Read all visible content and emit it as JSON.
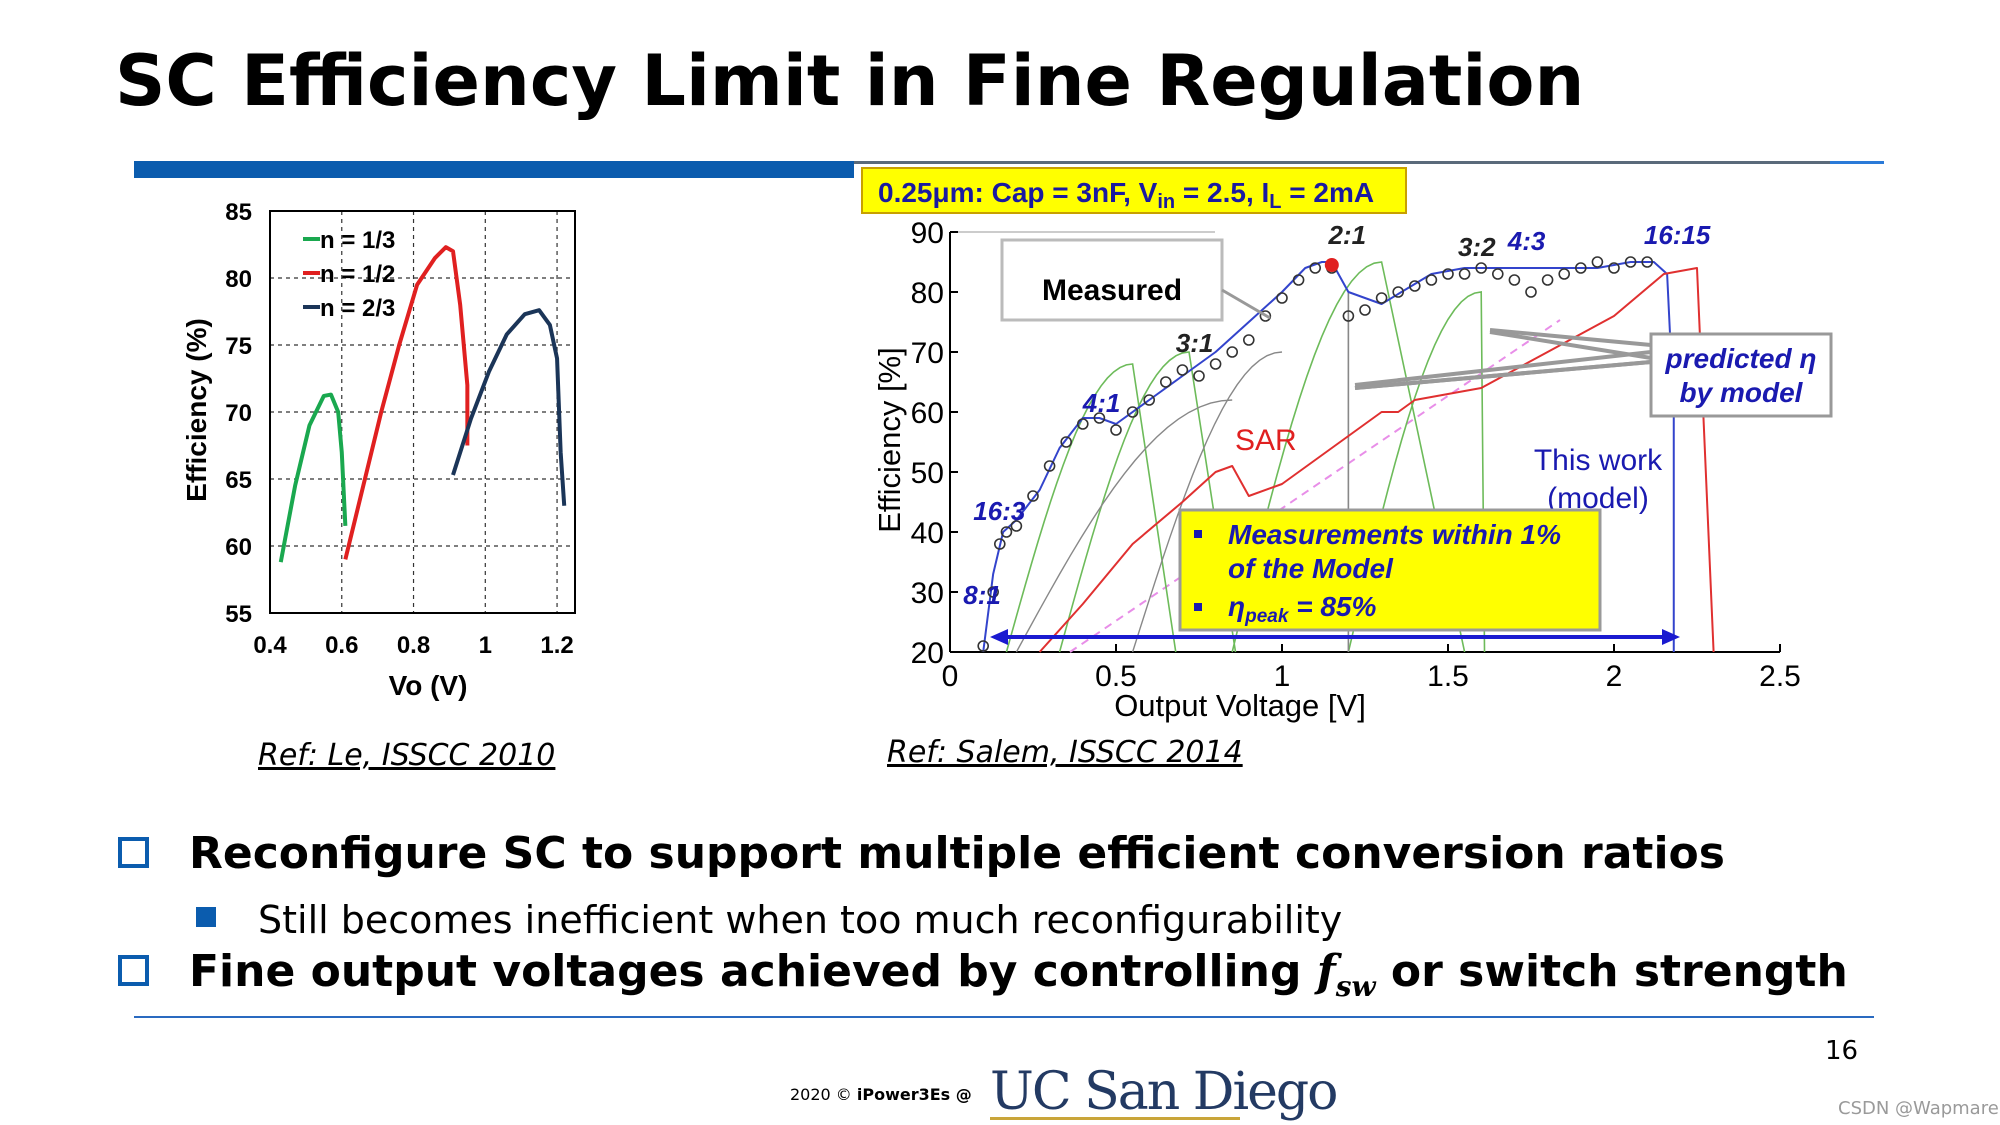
{
  "slide": {
    "title": "SC Efficiency Limit in Fine Regulation",
    "page_number": "16",
    "footer_text": "2020 © ",
    "footer_brand": "iPower3Es @",
    "footer_logo_text": "UC San Diego",
    "watermark": "CSDN @Wapmare",
    "colors": {
      "accent": "#0b5cae",
      "rule": "#2a6ac0",
      "logo": "#233a63"
    }
  },
  "ref_left": "Ref: Le, ISSCC 2010",
  "ref_right": "Ref: Salem, ISSCC 2014",
  "bullets": {
    "b1": "Reconfigure SC to support multiple efficient conversion ratios",
    "b1_sub": "Still becomes inefficient when too much reconfigurability",
    "b2_pre": "Fine output voltages achieved by controlling ",
    "b2_var": "f",
    "b2_var_sub": "sw",
    "b2_post": " or switch strength",
    "icons": [
      "checkbox-icon",
      "square-bullet-icon",
      "checkbox-icon"
    ]
  },
  "chart_data": [
    {
      "type": "line",
      "xlabel": "Vo (V)",
      "ylabel": "Efficiency (%)",
      "xlim": [
        0.4,
        1.25
      ],
      "ylim": [
        55,
        85
      ],
      "xticks": [
        "0.4",
        "0.6",
        "0.8",
        "1",
        "1.2"
      ],
      "yticks": [
        "55",
        "60",
        "65",
        "70",
        "75",
        "80",
        "85"
      ],
      "grid": true,
      "legend_position": "top-left",
      "series": [
        {
          "name": "n = 1/3",
          "color": "#1aa84f",
          "x": [
            0.43,
            0.47,
            0.51,
            0.55,
            0.57,
            0.59,
            0.6,
            0.61
          ],
          "y": [
            58.8,
            64.5,
            69.0,
            71.2,
            71.3,
            70.0,
            67.0,
            61.5
          ]
        },
        {
          "name": "n = 1/2",
          "color": "#e02020",
          "x": [
            0.61,
            0.66,
            0.71,
            0.76,
            0.81,
            0.86,
            0.89,
            0.91,
            0.93,
            0.95,
            0.95
          ],
          "y": [
            59.0,
            64.5,
            70.0,
            75.0,
            79.5,
            81.5,
            82.3,
            82.0,
            78.0,
            72.0,
            67.5
          ]
        },
        {
          "name": "n = 2/3",
          "color": "#1b3558",
          "x": [
            0.91,
            0.96,
            1.01,
            1.06,
            1.11,
            1.15,
            1.18,
            1.2,
            1.21,
            1.22
          ],
          "y": [
            65.3,
            69.5,
            73.0,
            75.8,
            77.3,
            77.6,
            76.5,
            74.0,
            67.0,
            63.0
          ]
        }
      ]
    },
    {
      "type": "line",
      "xlabel": "Output Voltage [V]",
      "ylabel": "Efficiency [%]",
      "xlim": [
        0,
        2.5
      ],
      "ylim": [
        20,
        90
      ],
      "xticks": [
        "0",
        "0.5",
        "1",
        "1.5",
        "2",
        "2.5"
      ],
      "yticks": [
        "20",
        "30",
        "40",
        "50",
        "60",
        "70",
        "80",
        "90"
      ],
      "header": "0.25μm: Cap = 3nF, V",
      "header_sub_in": "in",
      "header_mid": " = 2.5, I",
      "header_sub_l": "L",
      "header_end": " = 2mA",
      "ratio_labels": [
        "16:3",
        "8:1",
        "4:1",
        "3:1",
        "2:1",
        "3:2",
        "4:3",
        "16:15"
      ],
      "annotations": {
        "measured": "Measured",
        "predicted_1": "predicted η",
        "predicted_2": "by model",
        "sar": "SAR",
        "this_work_1": "This work",
        "this_work_2": "(model)",
        "box_line1": "Measurements within 1%",
        "box_line2": "of the Model",
        "box_line3_pre": "η",
        "box_line3_sub": "peak",
        "box_line3_post": " = 85%"
      },
      "series": [
        {
          "name": "This work (model)",
          "color": "#3344cc",
          "x": [
            0.1,
            0.13,
            0.16,
            0.2,
            0.27,
            0.33,
            0.4,
            0.45,
            0.5,
            0.6,
            0.7,
            0.8,
            0.9,
            1.0,
            1.07,
            1.12,
            1.15,
            1.2,
            1.3,
            1.45,
            1.55,
            1.65,
            1.75,
            1.85,
            1.95,
            2.05,
            2.12,
            2.16,
            2.18,
            2.18
          ],
          "y": [
            20,
            33,
            40,
            42,
            47,
            54,
            59,
            59,
            58,
            62,
            66,
            70,
            75,
            80,
            84,
            85,
            85,
            80,
            78,
            83,
            84,
            84,
            84,
            84,
            84,
            85,
            85,
            83,
            60,
            20
          ]
        },
        {
          "name": "Measured",
          "color": "#333333",
          "x": [
            0.1,
            0.13,
            0.15,
            0.17,
            0.2,
            0.25,
            0.3,
            0.35,
            0.4,
            0.45,
            0.5,
            0.55,
            0.6,
            0.65,
            0.7,
            0.75,
            0.8,
            0.85,
            0.9,
            0.95,
            1.0,
            1.05,
            1.1,
            1.15,
            1.2,
            1.25,
            1.3,
            1.35,
            1.4,
            1.45,
            1.5,
            1.55,
            1.6,
            1.65,
            1.7,
            1.75,
            1.8,
            1.85,
            1.9,
            1.95,
            2.0,
            2.05,
            2.1
          ],
          "y": [
            21,
            30,
            38,
            40,
            41,
            46,
            51,
            55,
            58,
            59,
            57,
            60,
            62,
            65,
            67,
            66,
            68,
            70,
            72,
            76,
            79,
            82,
            84,
            84,
            76,
            77,
            79,
            80,
            81,
            82,
            83,
            83,
            84,
            83,
            82,
            80,
            82,
            83,
            84,
            85,
            84,
            85,
            85
          ]
        },
        {
          "name": "SAR",
          "color": "#e03030",
          "x": [
            0.27,
            0.4,
            0.55,
            0.7,
            0.8,
            0.85,
            0.9,
            1.0,
            1.1,
            1.2,
            1.3,
            1.35,
            1.4,
            1.6,
            1.8,
            2.0,
            2.15,
            2.25,
            2.3
          ],
          "y": [
            20,
            28,
            38,
            45,
            50,
            51,
            46,
            48,
            52,
            56,
            60,
            60,
            62,
            64,
            70,
            76,
            83,
            84,
            20
          ]
        }
      ]
    }
  ]
}
